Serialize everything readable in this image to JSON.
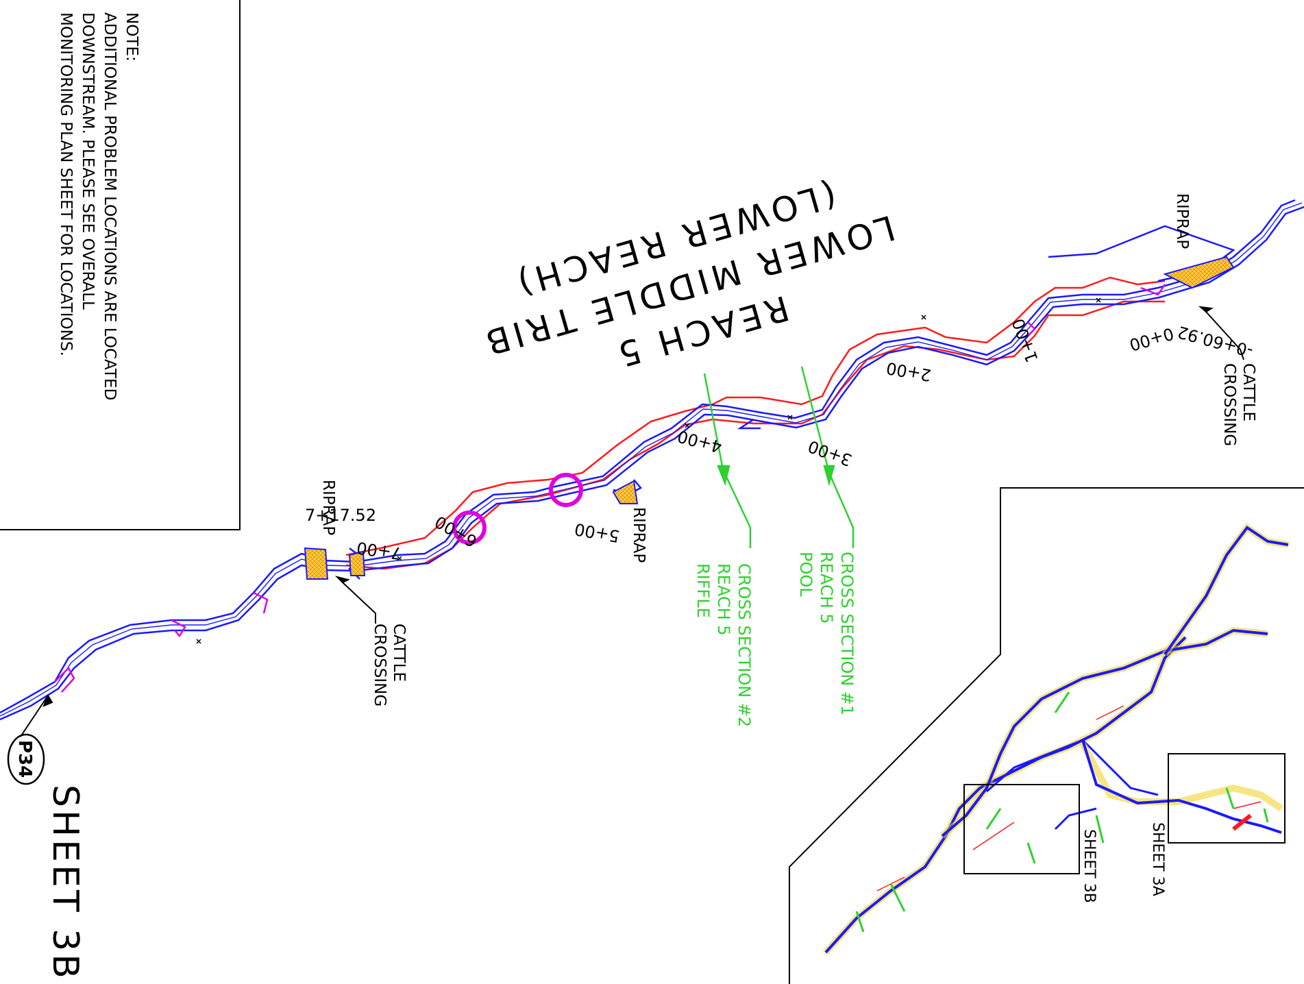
{
  "note": {
    "lines": [
      "NOTE:",
      "ADDITIONAL PROBLEM LOCATIONS ARE LOCATED",
      "DOWNSTREAM. PLEASE SEE OVERALL",
      "MONITORING PLAN SHEET FOR LOCATIONS."
    ]
  },
  "reach_title": {
    "lines": [
      "REACH 5",
      "LOWER MIDDLE TRIB",
      "(LOWER REACH)"
    ]
  },
  "stations": [
    "0+00",
    "1+00",
    "2+00",
    "3+00",
    "4+00",
    "5+00",
    "6+00",
    "7+00"
  ],
  "station_start": "-0+60.92",
  "station_end": "7+17.52",
  "labels": {
    "riprap": "RIPRAP",
    "cattle_crossing": [
      "CATTLE",
      "CROSSING"
    ]
  },
  "cross_sections": [
    {
      "lines": [
        "CROSS SECTION #1",
        "REACH 5",
        "POOL"
      ]
    },
    {
      "lines": [
        "CROSS SECTION #2",
        "REACH 5",
        "RIFFLE"
      ]
    }
  ],
  "photo_point": "P34",
  "sheet_title": "SHEET 3B",
  "key_map": {
    "sheets": [
      "SHEET 3B",
      "SHEET 3A"
    ]
  },
  "colors": {
    "channel": "#1a1aff",
    "bank_limit": "#ff1a1a",
    "cross_section": "#2fd12f",
    "problem_circle": "#ff00ff",
    "riprap_fill": "#f5b800",
    "magenta_detail": "#e000e0"
  }
}
